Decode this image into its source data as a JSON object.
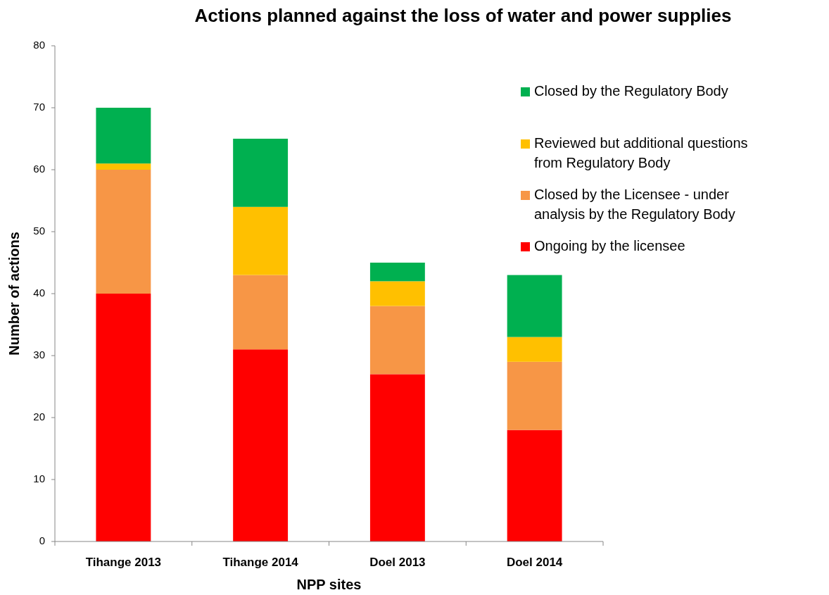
{
  "chart_data": {
    "type": "bar",
    "title": "Actions planned against the loss of water and power supplies",
    "xlabel": "NPP sites",
    "ylabel": "Number of actions",
    "categories": [
      "Tihange 2013",
      "Tihange 2014",
      "Doel 2013",
      "Doel 2014"
    ],
    "stacked": true,
    "ylim": [
      0,
      80
    ],
    "yticks": [
      0,
      10,
      20,
      30,
      40,
      50,
      60,
      70,
      80
    ],
    "grid": false,
    "legend": "right",
    "series": [
      {
        "name": "Ongoing by the licensee",
        "color": "#ff0000",
        "values": [
          40,
          31,
          27,
          18
        ]
      },
      {
        "name": "Closed by the Licensee - under analysis by the Regulatory Body",
        "color": "#f79646",
        "values": [
          20,
          12,
          11,
          11
        ]
      },
      {
        "name": "Reviewed but additional questions from Regulatory Body",
        "color": "#ffc000",
        "values": [
          1,
          11,
          4,
          4
        ]
      },
      {
        "name": "Closed by the Regulatory Body",
        "color": "#00b050",
        "values": [
          9,
          11,
          3,
          10
        ]
      }
    ]
  }
}
